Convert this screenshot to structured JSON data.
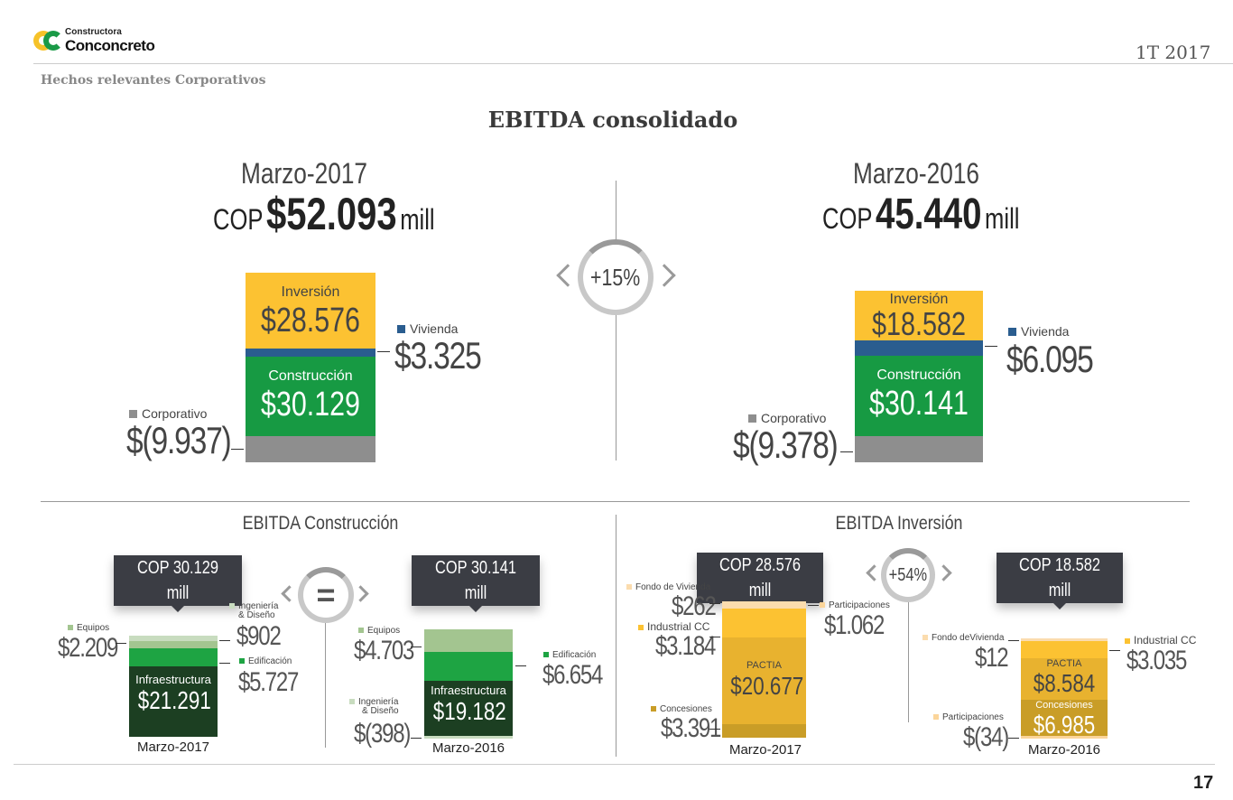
{
  "header": {
    "brand_small": "Constructora",
    "brand": "Conconcreto",
    "period": "1T 2017",
    "section": "Hechos relevantes Corporativos",
    "title": "EBITDA consolidado",
    "page": "17"
  },
  "colors": {
    "yellow": "#fcc232",
    "blue": "#2a5d8f",
    "green": "#179a43",
    "gray": "#8e8e8e"
  },
  "consolidated": {
    "left": {
      "period": "Marzo-2017",
      "cop": "COP",
      "amount": "$52.093",
      "unit": "mill",
      "inversion_label": "Inversión",
      "inversion": "$28.576",
      "vivienda_label": "Vivienda",
      "vivienda": "$3.325",
      "construccion_label": "Construcción",
      "construccion": "$30.129",
      "corporativo_label": "Corporativo",
      "corporativo": "$(9.937)"
    },
    "change": "+15%",
    "right": {
      "period": "Marzo-2016",
      "cop": "COP",
      "amount": "45.440",
      "unit": "mill",
      "inversion_label": "Inversión",
      "inversion": "$18.582",
      "vivienda_label": "Vivienda",
      "vivienda": "$6.095",
      "construccion_label": "Construcción",
      "construccion": "$30.141",
      "corporativo_label": "Corporativo",
      "corporativo": "$(9.378)"
    }
  },
  "construccion": {
    "title": "EBITDA Construcción",
    "change": "=",
    "y2017": {
      "total": "COP 30.129 mill",
      "equipos_label": "Equipos",
      "equipos": "$2.209",
      "ing_label1": "Ingeniería",
      "ing_label2": "& Diseño",
      "ing": "$902",
      "edif_label": "Edificación",
      "edif": "$5.727",
      "infra_label": "Infraestructura",
      "infra": "$21.291",
      "year": "Marzo-2017"
    },
    "y2016": {
      "total": "COP 30.141 mill",
      "equipos_label": "Equipos",
      "equipos": "$4.703",
      "ing_label1": "Ingeniería",
      "ing_label2": "& Diseño",
      "ing": "$(398)",
      "edif_label": "Edificación",
      "edif": "$6.654",
      "infra_label": "Infraestructura",
      "infra": "$19.182",
      "year": "Marzo-2016"
    }
  },
  "inversion": {
    "title": "EBITDA Inversión",
    "change": "+54%",
    "y2017": {
      "total": "COP 28.576 mill",
      "fondo_label": "Fondo de Vivienda",
      "fondo": "$262",
      "ind_label": "Industrial CC",
      "ind": "$3.184",
      "part_label": "Participaciones",
      "part": "$1.062",
      "pactia_label": "PACTIA",
      "pactia": "$20.677",
      "conc_label": "Concesiones",
      "conc": "$3.391",
      "year": "Marzo-2017"
    },
    "y2016": {
      "total": "COP 18.582 mill",
      "fondo_label": "Fondo deVivienda",
      "fondo": "$12",
      "ind_label": "Industrial CC",
      "ind": "$3.035",
      "part_label": "Participaciones",
      "part": "$(34)",
      "pactia_label": "PACTIA",
      "pactia": "$8.584",
      "conc_label": "Concesiones",
      "conc": "$6.985",
      "year": "Marzo-2016"
    }
  }
}
